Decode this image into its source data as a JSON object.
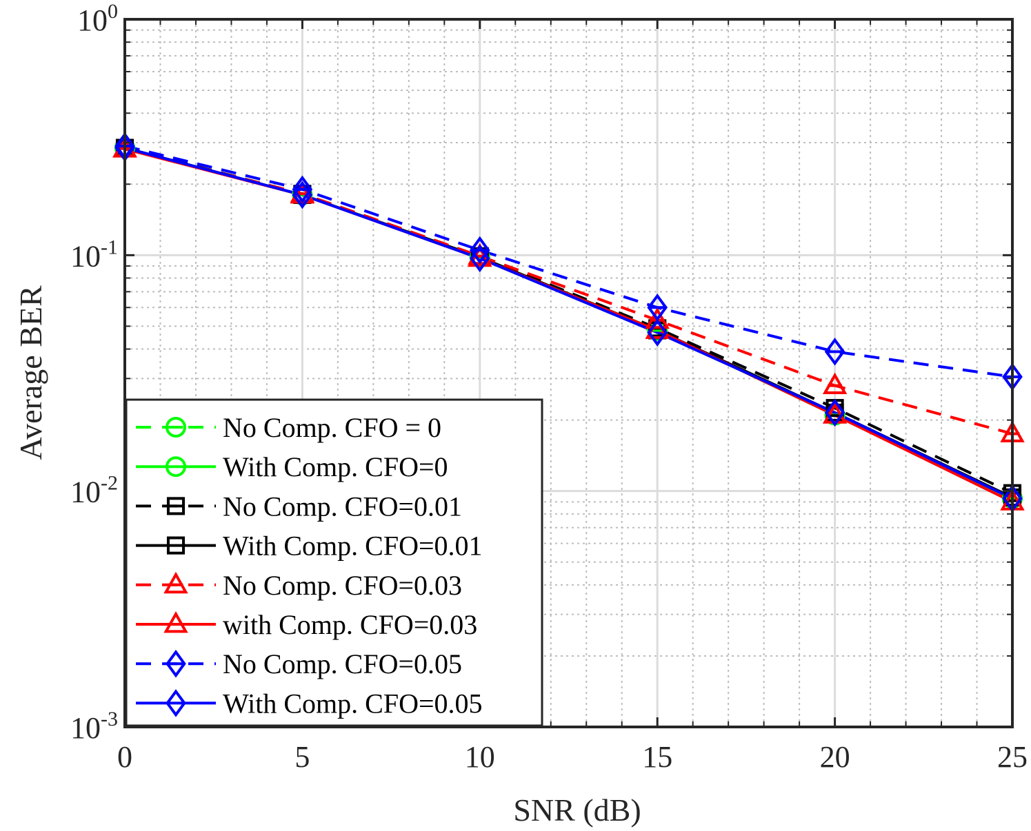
{
  "chart_data": {
    "type": "line",
    "title": "",
    "xlabel": "SNR (dB)",
    "ylabel": "Average BER",
    "xlim": [
      0,
      25
    ],
    "ylim": [
      0.001,
      1
    ],
    "yscale": "log",
    "grid": true,
    "minor_grid": true,
    "legend_position": "bottom-left",
    "x_ticks": [
      0,
      5,
      10,
      15,
      20,
      25
    ],
    "y_tick_labels": [
      {
        "value": 1,
        "base": "10",
        "exp": "0"
      },
      {
        "value": 0.1,
        "base": "10",
        "exp": "-1"
      },
      {
        "value": 0.01,
        "base": "10",
        "exp": "-2"
      },
      {
        "value": 0.001,
        "base": "10",
        "exp": "-3"
      }
    ],
    "x": [
      0,
      5,
      10,
      15,
      20,
      25
    ],
    "series": [
      {
        "name": "No Comp. CFO = 0",
        "color": "#00ff00",
        "dash": "dashed",
        "marker": "circle-bar",
        "values": [
          0.285,
          0.18,
          0.098,
          0.048,
          0.021,
          0.0093
        ]
      },
      {
        "name": "With Comp. CFO=0",
        "color": "#00ff00",
        "dash": "solid",
        "marker": "circle",
        "values": [
          0.285,
          0.18,
          0.098,
          0.048,
          0.021,
          0.0093
        ]
      },
      {
        "name": "No Comp. CFO=0.01",
        "color": "#000000",
        "dash": "dashed",
        "marker": "square-bar",
        "values": [
          0.285,
          0.182,
          0.099,
          0.049,
          0.0225,
          0.0098
        ]
      },
      {
        "name": "With Comp. CFO=0.01",
        "color": "#000000",
        "dash": "solid",
        "marker": "square",
        "values": [
          0.285,
          0.18,
          0.098,
          0.048,
          0.0215,
          0.0094
        ]
      },
      {
        "name": "No Comp. CFO=0.03",
        "color": "#ff0000",
        "dash": "dashed",
        "marker": "triangle-bar",
        "values": [
          0.283,
          0.182,
          0.099,
          0.053,
          0.028,
          0.0175
        ]
      },
      {
        "name": "with Comp. CFO=0.03",
        "color": "#ff0000",
        "dash": "solid",
        "marker": "triangle",
        "values": [
          0.282,
          0.18,
          0.097,
          0.048,
          0.021,
          0.009
        ]
      },
      {
        "name": "No Comp. CFO=0.05",
        "color": "#0000ff",
        "dash": "dashed",
        "marker": "diamond-bar",
        "values": [
          0.29,
          0.19,
          0.105,
          0.06,
          0.039,
          0.0305
        ]
      },
      {
        "name": "With Comp. CFO=0.05",
        "color": "#0000ff",
        "dash": "solid",
        "marker": "diamond",
        "values": [
          0.285,
          0.18,
          0.097,
          0.047,
          0.0215,
          0.0093
        ]
      }
    ]
  }
}
